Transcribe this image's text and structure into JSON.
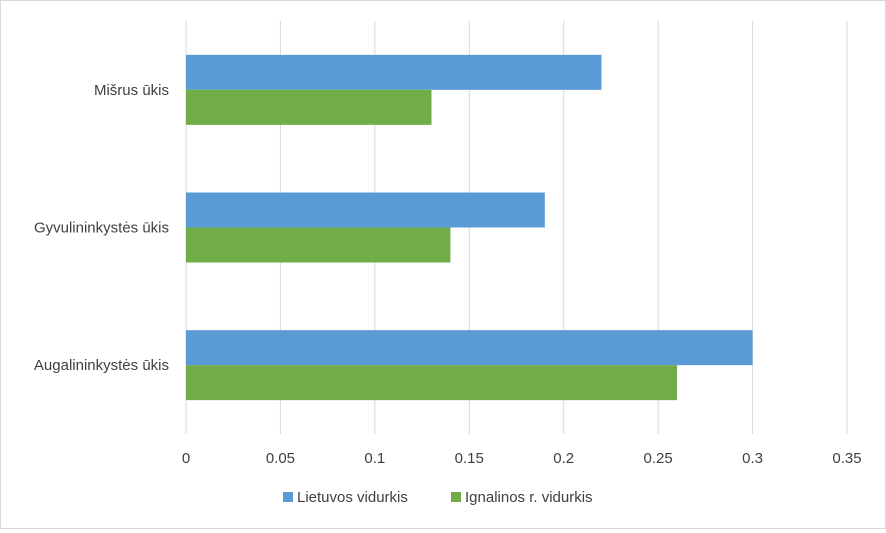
{
  "chart_data": {
    "type": "bar",
    "orientation": "horizontal",
    "categories": [
      "Mišrus ūkis",
      "Gyvulininkystės ūkis",
      "Augalininkystės ūkis"
    ],
    "series": [
      {
        "name": "Lietuvos vidurkis",
        "values": [
          0.22,
          0.19,
          0.3
        ],
        "color": "#5b9bd5"
      },
      {
        "name": "Ignalinos r. vidurkis",
        "values": [
          0.13,
          0.14,
          0.26
        ],
        "color": "#70ad47"
      }
    ],
    "xlim": [
      0,
      0.35
    ],
    "xticks": [
      "0",
      "0.05",
      "0.1",
      "0.15",
      "0.2",
      "0.25",
      "0.3",
      "0.35"
    ],
    "grid": true,
    "legend": "bottom",
    "title": "",
    "xlabel": "",
    "ylabel": ""
  }
}
